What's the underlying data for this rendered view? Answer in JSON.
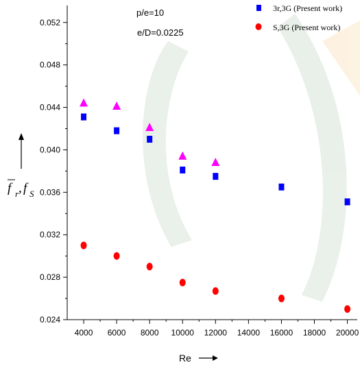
{
  "chart_data": {
    "type": "scatter",
    "annotations": [
      "p/e=10",
      "e/D=0.0225"
    ],
    "xlabel": "Re",
    "ylabel": {
      "f": "f",
      "r": "r",
      "sep": ",",
      "s_main": "f",
      "s_sub": "S"
    },
    "xlim": [
      3000,
      20600
    ],
    "ylim": [
      0.024,
      0.0536
    ],
    "xticks": [
      4000,
      6000,
      8000,
      10000,
      12000,
      14000,
      16000,
      18000,
      20000
    ],
    "xtick_labels": [
      "4000",
      "6000",
      "8000",
      "10000",
      "12000",
      "14000",
      "16000",
      "18000",
      "20000"
    ],
    "yticks": [
      0.024,
      0.028,
      0.032,
      0.036,
      0.04,
      0.044,
      0.048,
      0.052
    ],
    "ytick_labels": [
      "0.024",
      "0.028",
      "0.032",
      "0.036",
      "0.040",
      "0.044",
      "0.048",
      "0.052"
    ],
    "legend_position": "top-right",
    "series": [
      {
        "name": "",
        "marker": "triangle",
        "color": "#ff00ff",
        "x": [
          4000,
          6000,
          8000,
          10000,
          12000
        ],
        "y": [
          0.0444,
          0.0441,
          0.0421,
          0.0394,
          0.0388
        ]
      },
      {
        "name": "3r,3G (Present work)",
        "marker": "square",
        "color": "#0000ff",
        "x": [
          4000,
          6000,
          8000,
          10000,
          12000,
          16000,
          20000
        ],
        "y": [
          0.0431,
          0.0418,
          0.041,
          0.0381,
          0.0375,
          0.0365,
          0.0351
        ]
      },
      {
        "name": "S,3G (Present work)",
        "marker": "circle",
        "color": "#ff0000",
        "x": [
          4000,
          6000,
          8000,
          10000,
          12000,
          16000,
          20000
        ],
        "y": [
          0.031,
          0.03,
          0.029,
          0.0275,
          0.0267,
          0.026,
          0.025
        ]
      }
    ]
  }
}
